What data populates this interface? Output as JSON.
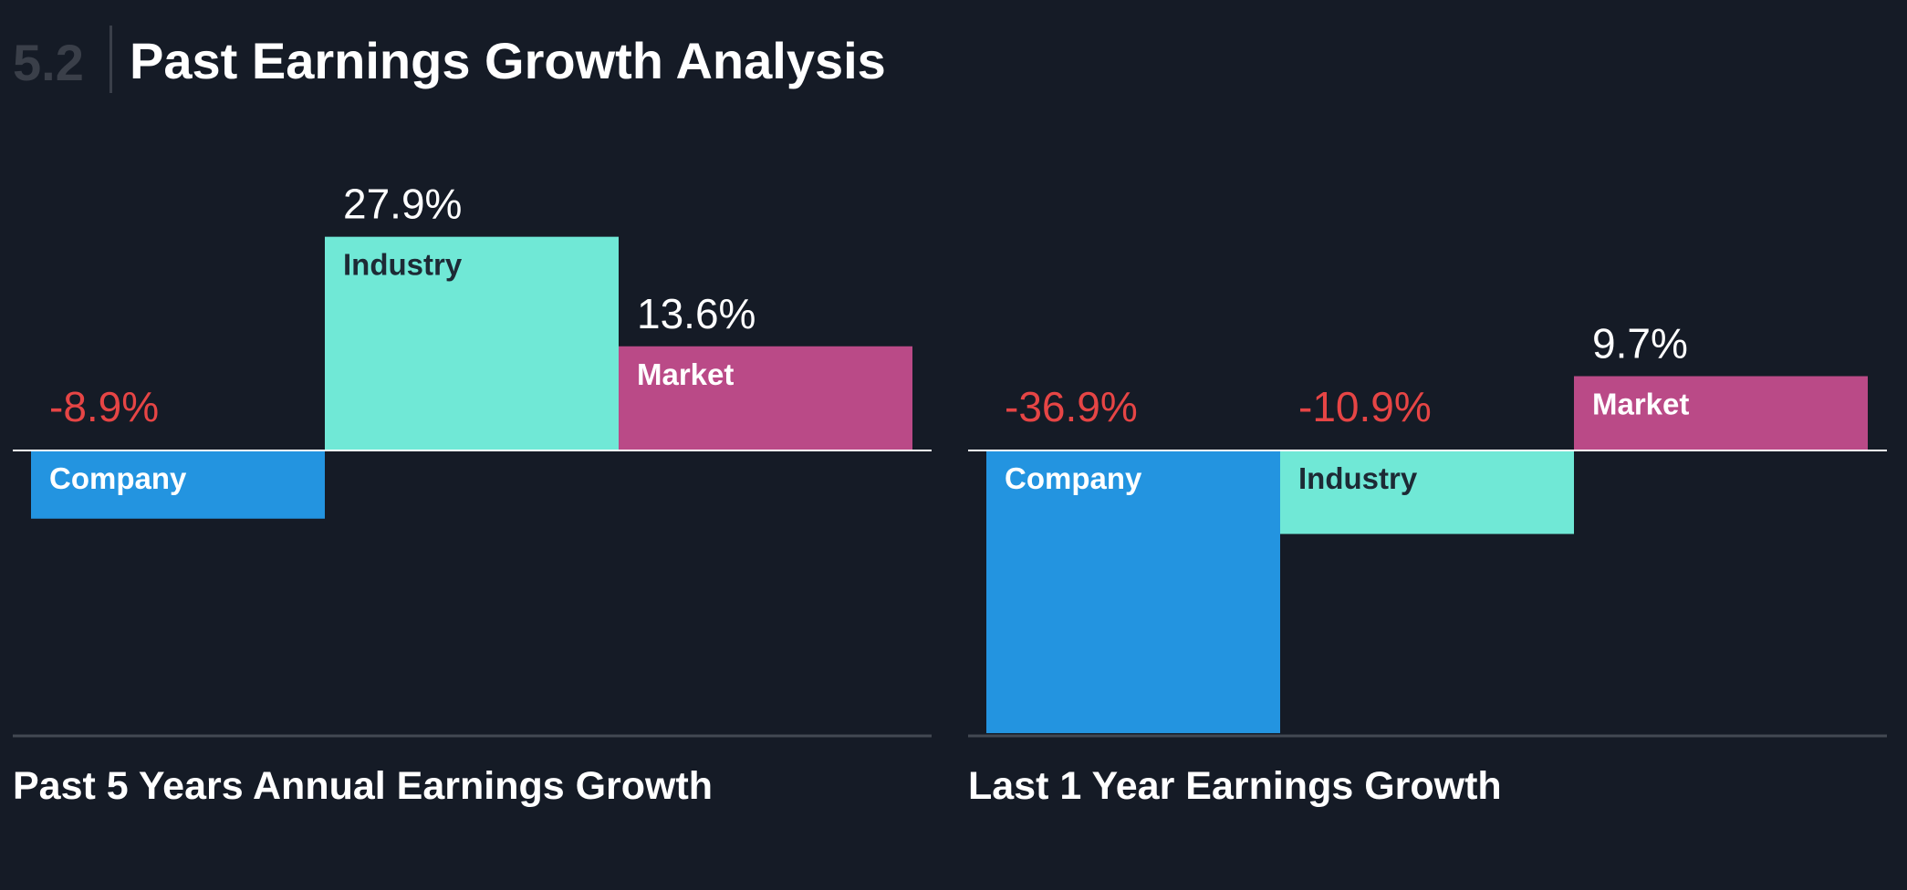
{
  "header": {
    "section_number": "5.2",
    "title": "Past Earnings Growth Analysis"
  },
  "colors": {
    "background": "#151b26",
    "company": "#2394e0",
    "industry": "#70e8d6",
    "market": "#ba4a87",
    "negative_text": "#e64545",
    "positive_text": "#ffffff",
    "baseline": "#ffffff",
    "bottom_rule": "#434953"
  },
  "chart_data": [
    {
      "type": "bar",
      "title": "Past 5 Years Annual Earnings Growth",
      "categories": [
        "Company",
        "Industry",
        "Market"
      ],
      "values": [
        -8.9,
        27.9,
        13.6
      ],
      "value_labels": [
        "-8.9%",
        "27.9%",
        "13.6%"
      ],
      "unit": "%"
    },
    {
      "type": "bar",
      "title": "Last 1 Year Earnings Growth",
      "categories": [
        "Company",
        "Industry",
        "Market"
      ],
      "values": [
        -36.9,
        -10.9,
        9.7
      ],
      "value_labels": [
        "-36.9%",
        "-10.9%",
        "9.7%"
      ],
      "unit": "%"
    }
  ]
}
